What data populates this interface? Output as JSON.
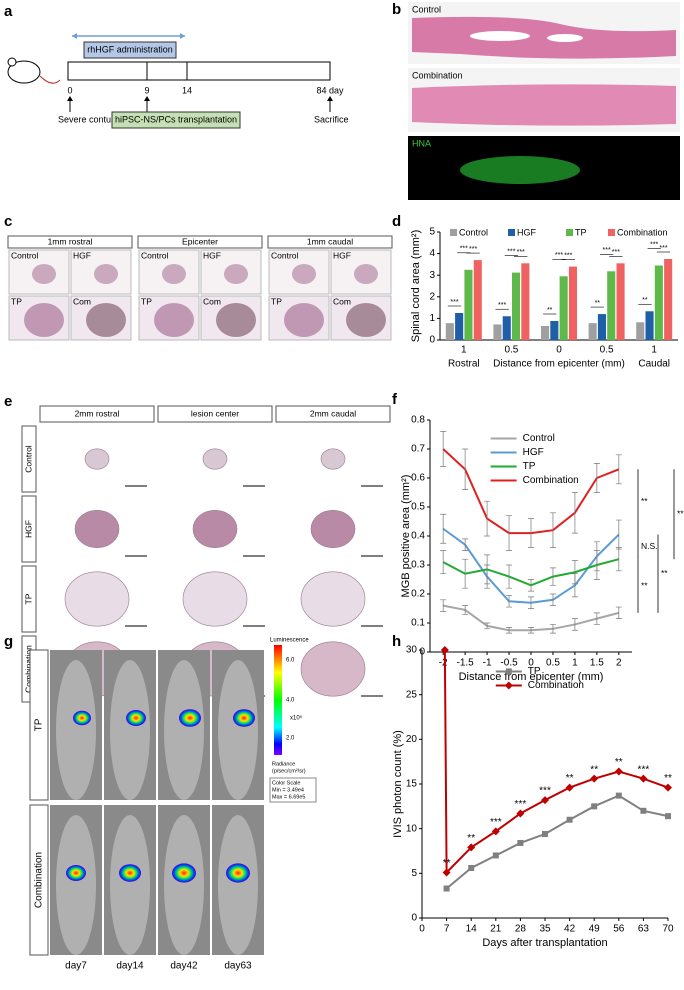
{
  "panel_labels": [
    "a",
    "b",
    "c",
    "d",
    "e",
    "f",
    "g",
    "h"
  ],
  "timeline": {
    "bar_label": "rhHGF administration",
    "ticks": [
      "0",
      "9",
      "14",
      "84 day"
    ],
    "events": [
      "Severe contusion SCI",
      "hiPSC-NS/PCs transplantation",
      "Sacrifice"
    ]
  },
  "histology_b": {
    "labels": [
      "Control",
      "Combination",
      "HNA"
    ]
  },
  "histology_c": {
    "columns": [
      "1mm rostral",
      "Epicenter",
      "1mm caudal"
    ],
    "cells": [
      "Control",
      "HGF",
      "TP",
      "Com"
    ]
  },
  "histology_e": {
    "columns": [
      "2mm rostral",
      "lesion center",
      "2mm caudal"
    ],
    "rows": [
      "Control",
      "HGF",
      "TP",
      "Combination"
    ]
  },
  "imaging_g": {
    "rows": [
      "TP",
      "Combination"
    ],
    "columns": [
      "day7",
      "day14",
      "day42",
      "day63"
    ],
    "colorbar": {
      "title": "Luminescence",
      "ticks": [
        "6.0",
        "4.0",
        "2.0"
      ],
      "unit": "x10⁵",
      "radiance": [
        "Radiance",
        "(p/sec/cm²/sr)"
      ],
      "scale": [
        "Color Scale",
        "Min = 3.49e4",
        "Max = 6.69e5"
      ]
    }
  },
  "chart_data": [
    {
      "type": "bar",
      "ylabel": "Spinal cord area (mm²)",
      "xlabel": "Distance from epicenter (mm)",
      "categories": [
        "1",
        "0.5",
        "0",
        "0.5",
        "1"
      ],
      "group_labels": [
        "Rostral",
        null,
        null,
        null,
        "Caudal"
      ],
      "ylim": [
        0,
        5
      ],
      "yticks": [
        0,
        1,
        2,
        3,
        4,
        5
      ],
      "legend": "upper center",
      "series": [
        {
          "name": "Control",
          "color": "#a0a0a0",
          "values": [
            0.78,
            0.72,
            0.65,
            0.78,
            0.82
          ]
        },
        {
          "name": "HGF",
          "color": "#1f5fa8",
          "values": [
            1.25,
            1.1,
            0.88,
            1.2,
            1.33
          ]
        },
        {
          "name": "TP",
          "color": "#5fb84a",
          "values": [
            3.25,
            3.12,
            2.95,
            3.18,
            3.45
          ]
        },
        {
          "name": "Combination",
          "color": "#f06262",
          "values": [
            3.7,
            3.55,
            3.4,
            3.55,
            3.75
          ]
        }
      ],
      "significance": [
        [
          "***",
          "***",
          "***"
        ],
        [
          "***",
          "***",
          "***"
        ],
        [
          "**",
          "***",
          "***"
        ],
        [
          "**",
          "***",
          "***"
        ],
        [
          "**",
          "***",
          "***"
        ]
      ]
    },
    {
      "type": "line",
      "ylabel": "MGB positive area (mm²)",
      "xlabel": "Distance from epicenter (mm)",
      "x": [
        -2,
        -1.5,
        -1,
        -0.5,
        0,
        0.5,
        1,
        1.5,
        2
      ],
      "xlim": [
        -2.3,
        2.3
      ],
      "xticks": [
        -2,
        -1.5,
        -1,
        -0.5,
        0,
        0.5,
        1,
        1.5,
        2
      ],
      "ylim": [
        0,
        0.8
      ],
      "yticks": [
        0,
        0.1,
        0.2,
        0.3,
        0.4,
        0.5,
        0.6,
        0.7,
        0.8
      ],
      "legend": "upper center",
      "series": [
        {
          "name": "Control",
          "color": "#a6a6a6",
          "values": [
            0.16,
            0.145,
            0.09,
            0.075,
            0.075,
            0.08,
            0.095,
            0.115,
            0.135
          ],
          "errors": [
            0.02,
            0.015,
            0.01,
            0.01,
            0.01,
            0.015,
            0.02,
            0.02,
            0.02
          ]
        },
        {
          "name": "HGF",
          "color": "#5b9bd5",
          "values": [
            0.425,
            0.37,
            0.26,
            0.175,
            0.17,
            0.18,
            0.23,
            0.33,
            0.405
          ],
          "errors": [
            0.05,
            0.02,
            0.04,
            0.02,
            0.02,
            0.02,
            0.04,
            0.05,
            0.05
          ]
        },
        {
          "name": "TP",
          "color": "#22aa33",
          "values": [
            0.31,
            0.27,
            0.285,
            0.26,
            0.23,
            0.26,
            0.275,
            0.3,
            0.32
          ],
          "errors": [
            0.04,
            0.05,
            0.05,
            0.04,
            0.02,
            0.03,
            0.04,
            0.05,
            0.04
          ]
        },
        {
          "name": "Combination",
          "color": "#e02020",
          "values": [
            0.7,
            0.63,
            0.46,
            0.41,
            0.41,
            0.42,
            0.48,
            0.6,
            0.63
          ],
          "errors": [
            0.06,
            0.07,
            0.06,
            0.06,
            0.05,
            0.06,
            0.07,
            0.05,
            0.05
          ]
        }
      ],
      "comparisons": [
        {
          "label": "**",
          "series": [
            "Combination",
            "HGF"
          ]
        },
        {
          "label": "N.S.",
          "series": [
            "HGF",
            "TP"
          ]
        },
        {
          "label": "**",
          "series": [
            "TP",
            "Control"
          ]
        },
        {
          "label": "**",
          "series": [
            "HGF",
            "Control"
          ]
        },
        {
          "label": "**",
          "series": [
            "Combination",
            "TP"
          ]
        }
      ]
    },
    {
      "type": "line",
      "ylabel": "IVIS photon count (%)",
      "xlabel": "Days after transplantation",
      "x": [
        6.5,
        7,
        14,
        21,
        28,
        35,
        42,
        49,
        56,
        63,
        70
      ],
      "xlim": [
        0,
        70
      ],
      "xticks": [
        0,
        7,
        14,
        21,
        28,
        35,
        42,
        49,
        56,
        63,
        70
      ],
      "ylim": [
        0,
        30
      ],
      "yticks": [
        0,
        5,
        10,
        15,
        20,
        25,
        30
      ],
      "legend": "upper center",
      "series": [
        {
          "name": "TP",
          "color": "#808080",
          "marker": "square",
          "values": [
            null,
            3.3,
            5.6,
            7.0,
            8.4,
            9.4,
            11.0,
            12.5,
            13.7,
            12.0,
            11.4
          ]
        },
        {
          "name": "Combination",
          "color": "#c00000",
          "marker": "diamond",
          "values": [
            30,
            5.1,
            7.9,
            9.7,
            11.7,
            13.2,
            14.6,
            15.6,
            16.4,
            15.6,
            14.6
          ]
        }
      ],
      "significance": [
        null,
        "**",
        "**",
        "***",
        "***",
        "***",
        "**",
        "**",
        "**",
        "***",
        "**"
      ]
    }
  ]
}
